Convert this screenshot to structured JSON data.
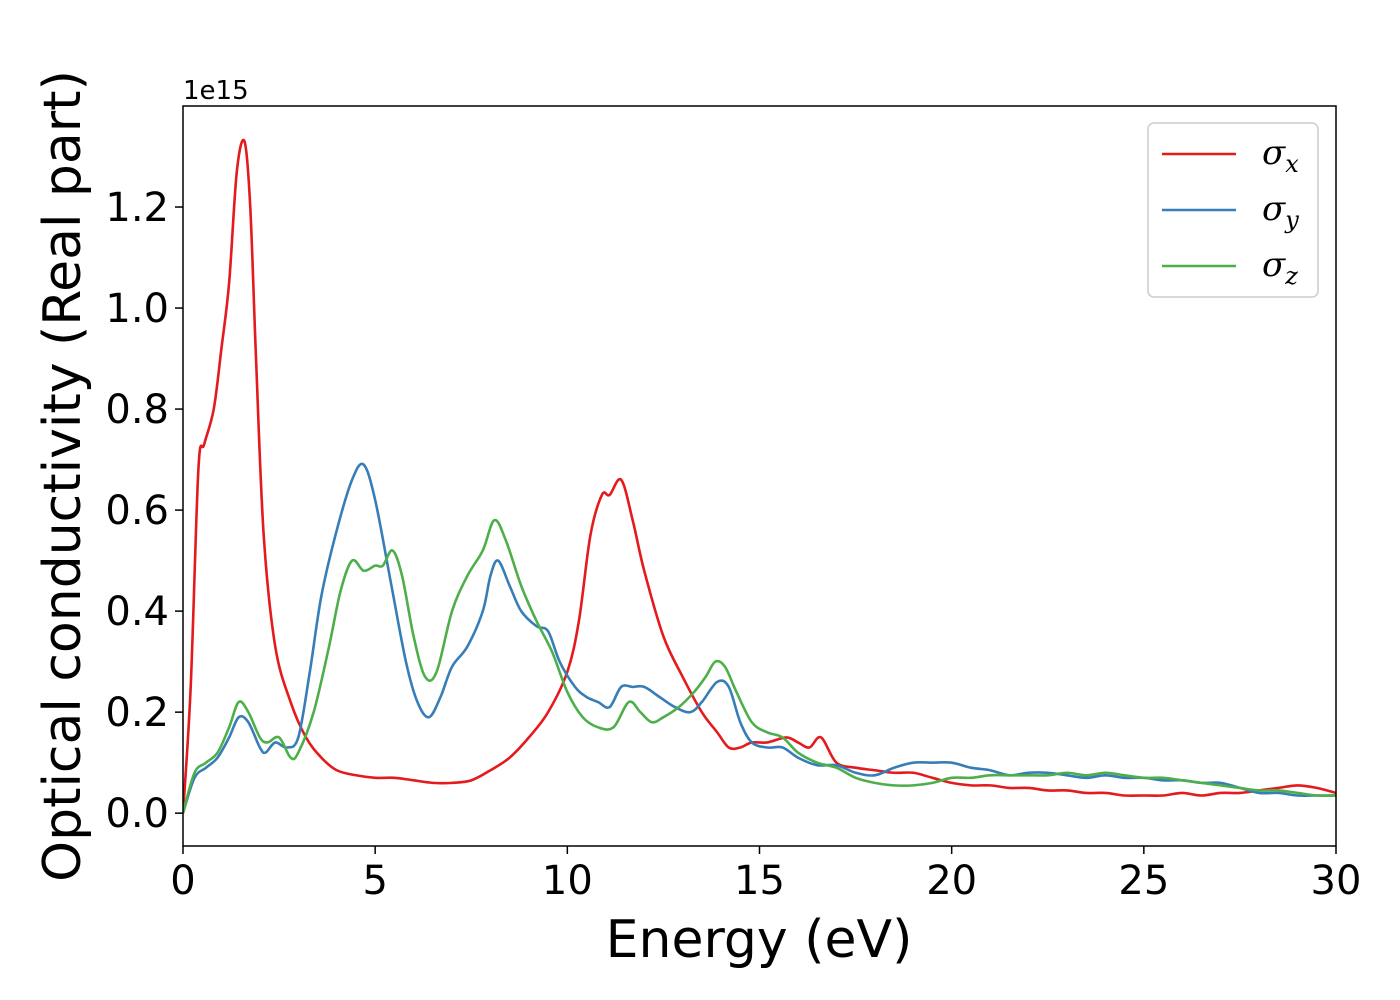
{
  "chart_data": {
    "type": "line",
    "xlabel": "Energy (eV)",
    "ylabel": "Optical conductivity (Real part)",
    "y_offset_label": "1e15",
    "xlim": [
      0,
      30
    ],
    "ylim": [
      -0.065,
      1.4
    ],
    "xticks": [
      0,
      5,
      10,
      15,
      20,
      25,
      30
    ],
    "yticks": [
      0.0,
      0.2,
      0.4,
      0.6,
      0.8,
      1.0,
      1.2
    ],
    "ytick_labels": [
      "0.0",
      "0.2",
      "0.4",
      "0.6",
      "0.8",
      "1.0",
      "1.2"
    ],
    "grid": false,
    "legend_position": "top-right",
    "series": [
      {
        "name": "σx",
        "symbol": "σ",
        "subscript": "x",
        "color": "#e41a1c",
        "x": [
          0,
          0.2,
          0.4,
          0.55,
          0.8,
          1.0,
          1.2,
          1.4,
          1.6,
          1.75,
          1.9,
          2.1,
          2.4,
          2.8,
          3.2,
          3.6,
          4.0,
          4.5,
          5.0,
          5.5,
          6.0,
          6.5,
          7.0,
          7.5,
          8.0,
          8.5,
          9.0,
          9.5,
          10.0,
          10.3,
          10.6,
          10.9,
          11.1,
          11.4,
          11.7,
          12.0,
          12.5,
          13.0,
          13.5,
          13.9,
          14.2,
          14.5,
          14.8,
          15.2,
          15.7,
          16.0,
          16.3,
          16.6,
          17.0,
          17.5,
          18.0,
          18.5,
          19.0,
          19.5,
          20.0,
          20.5,
          21.0,
          21.5,
          22.0,
          22.5,
          23.0,
          23.5,
          24.0,
          24.5,
          25.0,
          25.5,
          26.0,
          26.5,
          27.0,
          27.5,
          28.0,
          28.5,
          29.0,
          29.5,
          30.0
        ],
        "y": [
          0.0,
          0.25,
          0.68,
          0.73,
          0.8,
          0.92,
          1.05,
          1.27,
          1.33,
          1.2,
          0.9,
          0.55,
          0.33,
          0.22,
          0.15,
          0.11,
          0.085,
          0.075,
          0.07,
          0.07,
          0.065,
          0.06,
          0.06,
          0.065,
          0.085,
          0.11,
          0.15,
          0.2,
          0.28,
          0.38,
          0.55,
          0.63,
          0.63,
          0.66,
          0.58,
          0.48,
          0.35,
          0.27,
          0.2,
          0.16,
          0.13,
          0.13,
          0.14,
          0.14,
          0.15,
          0.14,
          0.13,
          0.15,
          0.1,
          0.09,
          0.085,
          0.08,
          0.08,
          0.07,
          0.06,
          0.055,
          0.055,
          0.05,
          0.05,
          0.045,
          0.045,
          0.04,
          0.04,
          0.035,
          0.035,
          0.035,
          0.04,
          0.035,
          0.04,
          0.04,
          0.045,
          0.05,
          0.055,
          0.05,
          0.04
        ]
      },
      {
        "name": "σy",
        "symbol": "σ",
        "subscript": "y",
        "color": "#377eb8",
        "x": [
          0,
          0.3,
          0.6,
          0.9,
          1.2,
          1.45,
          1.7,
          2.0,
          2.15,
          2.4,
          2.7,
          3.0,
          3.3,
          3.6,
          4.0,
          4.4,
          4.7,
          5.0,
          5.4,
          5.8,
          6.1,
          6.4,
          6.7,
          7.0,
          7.4,
          7.8,
          8.0,
          8.2,
          8.5,
          8.8,
          9.2,
          9.5,
          9.8,
          10.2,
          10.5,
          10.8,
          11.1,
          11.4,
          11.7,
          12.0,
          12.4,
          12.8,
          13.2,
          13.5,
          13.9,
          14.2,
          14.5,
          14.8,
          15.2,
          15.6,
          16.0,
          16.5,
          17.0,
          17.5,
          18.0,
          18.5,
          19.0,
          19.5,
          20.0,
          20.5,
          21.0,
          21.5,
          22.0,
          22.5,
          23.0,
          23.5,
          24.0,
          24.5,
          25.0,
          25.5,
          26.0,
          26.5,
          27.0,
          27.5,
          28.0,
          28.5,
          29.0,
          29.5,
          30.0
        ],
        "y": [
          0.0,
          0.07,
          0.09,
          0.11,
          0.15,
          0.19,
          0.18,
          0.13,
          0.12,
          0.14,
          0.13,
          0.15,
          0.28,
          0.43,
          0.56,
          0.66,
          0.69,
          0.62,
          0.46,
          0.3,
          0.22,
          0.19,
          0.23,
          0.29,
          0.33,
          0.4,
          0.47,
          0.5,
          0.45,
          0.4,
          0.37,
          0.36,
          0.3,
          0.25,
          0.23,
          0.22,
          0.21,
          0.25,
          0.25,
          0.25,
          0.23,
          0.21,
          0.2,
          0.22,
          0.26,
          0.25,
          0.18,
          0.14,
          0.13,
          0.13,
          0.11,
          0.095,
          0.095,
          0.08,
          0.075,
          0.09,
          0.1,
          0.1,
          0.1,
          0.09,
          0.085,
          0.075,
          0.08,
          0.08,
          0.075,
          0.07,
          0.075,
          0.07,
          0.07,
          0.065,
          0.065,
          0.06,
          0.06,
          0.05,
          0.04,
          0.04,
          0.035,
          0.035,
          0.035
        ]
      },
      {
        "name": "σz",
        "symbol": "σ",
        "subscript": "z",
        "color": "#4daf4a",
        "x": [
          0,
          0.3,
          0.6,
          0.9,
          1.2,
          1.45,
          1.7,
          2.0,
          2.2,
          2.5,
          2.8,
          3.0,
          3.4,
          3.8,
          4.1,
          4.4,
          4.7,
          5.0,
          5.2,
          5.45,
          5.7,
          6.0,
          6.3,
          6.6,
          7.0,
          7.4,
          7.8,
          8.1,
          8.4,
          8.8,
          9.2,
          9.6,
          10.0,
          10.4,
          10.8,
          11.2,
          11.6,
          11.9,
          12.2,
          12.5,
          12.9,
          13.3,
          13.6,
          13.85,
          14.1,
          14.4,
          14.8,
          15.2,
          15.6,
          16.0,
          16.5,
          17.0,
          17.5,
          18.0,
          18.5,
          19.0,
          19.5,
          20.0,
          20.5,
          21.0,
          21.5,
          22.0,
          22.5,
          23.0,
          23.5,
          24.0,
          24.5,
          25.0,
          25.5,
          26.0,
          26.5,
          27.0,
          27.5,
          28.0,
          28.5,
          29.0,
          29.5,
          30.0
        ],
        "y": [
          0.0,
          0.08,
          0.1,
          0.12,
          0.17,
          0.22,
          0.2,
          0.15,
          0.14,
          0.15,
          0.11,
          0.12,
          0.2,
          0.33,
          0.44,
          0.5,
          0.48,
          0.49,
          0.49,
          0.52,
          0.47,
          0.35,
          0.27,
          0.28,
          0.4,
          0.47,
          0.52,
          0.58,
          0.54,
          0.45,
          0.38,
          0.32,
          0.24,
          0.19,
          0.17,
          0.17,
          0.22,
          0.2,
          0.18,
          0.19,
          0.21,
          0.24,
          0.27,
          0.3,
          0.29,
          0.24,
          0.18,
          0.16,
          0.15,
          0.12,
          0.1,
          0.09,
          0.07,
          0.06,
          0.055,
          0.055,
          0.06,
          0.07,
          0.07,
          0.075,
          0.075,
          0.075,
          0.075,
          0.08,
          0.075,
          0.08,
          0.075,
          0.07,
          0.07,
          0.065,
          0.06,
          0.055,
          0.05,
          0.045,
          0.045,
          0.04,
          0.035,
          0.035
        ]
      }
    ]
  }
}
